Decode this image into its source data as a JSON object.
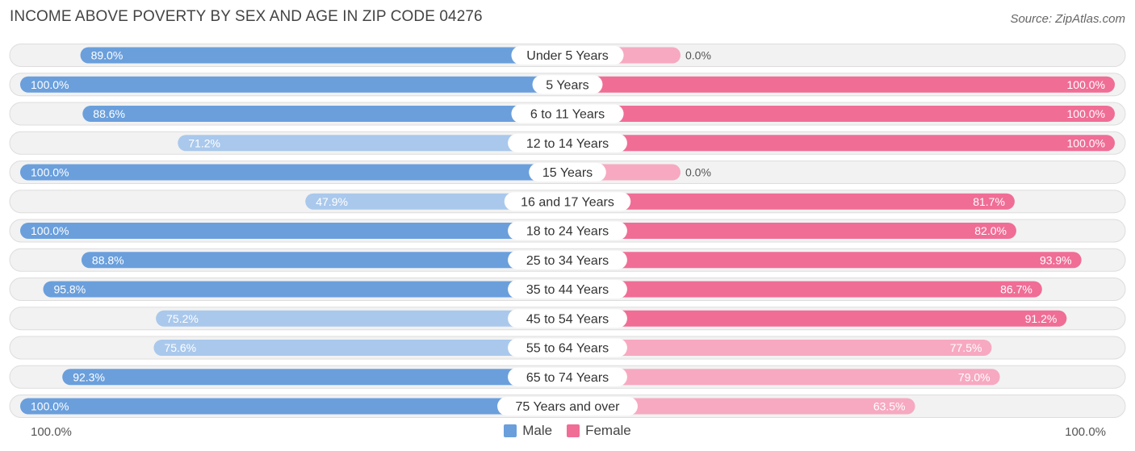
{
  "chart_data": {
    "type": "bar",
    "orientation": "diverging-horizontal",
    "title": "INCOME ABOVE POVERTY BY SEX AND AGE IN ZIP CODE 04276",
    "source": "Source: ZipAtlas.com",
    "categories": [
      "Under 5 Years",
      "5 Years",
      "6 to 11 Years",
      "12 to 14 Years",
      "15 Years",
      "16 and 17 Years",
      "18 to 24 Years",
      "25 to 34 Years",
      "35 to 44 Years",
      "45 to 54 Years",
      "55 to 64 Years",
      "65 to 74 Years",
      "75 Years and over"
    ],
    "series": [
      {
        "name": "Male",
        "values": [
          89.0,
          100.0,
          88.6,
          71.2,
          100.0,
          47.9,
          100.0,
          88.8,
          95.8,
          75.2,
          75.6,
          92.3,
          100.0
        ],
        "labels": [
          "89.0%",
          "100.0%",
          "88.6%",
          "71.2%",
          "100.0%",
          "47.9%",
          "100.0%",
          "88.8%",
          "95.8%",
          "75.2%",
          "75.6%",
          "92.3%",
          "100.0%"
        ]
      },
      {
        "name": "Female",
        "values": [
          0.0,
          100.0,
          100.0,
          100.0,
          0.0,
          81.7,
          82.0,
          93.9,
          86.7,
          91.2,
          77.5,
          79.0,
          63.5
        ],
        "labels": [
          "0.0%",
          "100.0%",
          "100.0%",
          "100.0%",
          "0.0%",
          "81.7%",
          "82.0%",
          "93.9%",
          "86.7%",
          "91.2%",
          "77.5%",
          "79.0%",
          "63.5%"
        ]
      }
    ],
    "xlim": [
      0,
      100
    ],
    "axis_left_label": "100.0%",
    "axis_right_label": "100.0%",
    "legend": [
      {
        "label": "Male",
        "color": "#6a9fdc"
      },
      {
        "label": "Female",
        "color": "#f06d96"
      }
    ],
    "colors": {
      "male_strong": "#6a9fdc",
      "male_light": "#a9c8ec",
      "female_strong": "#f06d96",
      "female_light": "#f7a9c1",
      "row_bg": "#f2f2f2",
      "row_border": "#dddddd"
    }
  }
}
